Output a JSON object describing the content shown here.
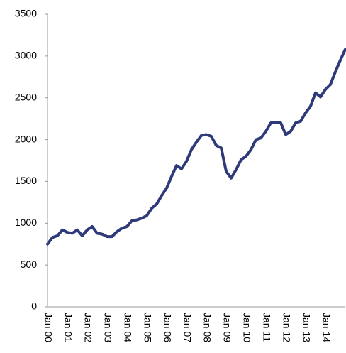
{
  "chart_data": {
    "type": "line",
    "categories": [
      "Jan 00",
      null,
      null,
      null,
      "Jan 01",
      null,
      null,
      null,
      "Jan 02",
      null,
      null,
      null,
      "Jan 03",
      null,
      null,
      null,
      "Jan 04",
      null,
      null,
      null,
      "Jan 05",
      null,
      null,
      null,
      "Jan 06",
      null,
      null,
      null,
      "Jan 07",
      null,
      null,
      null,
      "Jan 08",
      null,
      null,
      null,
      "Jan 09",
      null,
      null,
      null,
      "Jan 10",
      null,
      null,
      null,
      "Jan 11",
      null,
      null,
      null,
      "Jan 12",
      null,
      null,
      null,
      "Jan 13",
      null,
      null,
      null,
      "Jan 14",
      null,
      null,
      null,
      null
    ],
    "series": [
      {
        "color": "#2e3a7a",
        "values": [
          750,
          830,
          850,
          920,
          890,
          880,
          920,
          850,
          920,
          960,
          880,
          870,
          840,
          840,
          900,
          940,
          960,
          1030,
          1040,
          1060,
          1090,
          1180,
          1230,
          1330,
          1420,
          1560,
          1690,
          1650,
          1740,
          1880,
          1970,
          2050,
          2060,
          2040,
          1930,
          1900,
          1620,
          1540,
          1640,
          1760,
          1800,
          1880,
          2000,
          2020,
          2100,
          2200,
          2200,
          2200,
          2060,
          2100,
          2200,
          2220,
          2320,
          2400,
          2560,
          2510,
          2600,
          2660,
          2810,
          2950,
          3080
        ]
      }
    ],
    "ylim": [
      0,
      3500
    ],
    "yticks": [
      0,
      500,
      1000,
      1500,
      2000,
      2500,
      3000,
      3500
    ]
  }
}
